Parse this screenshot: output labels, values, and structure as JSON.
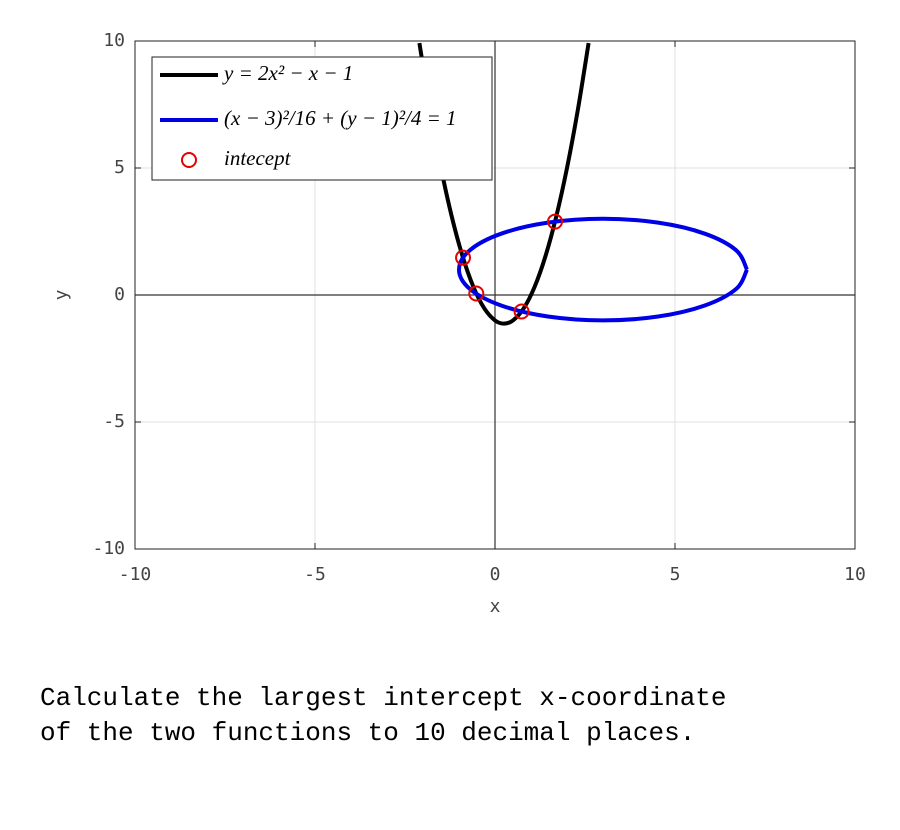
{
  "chart_data": {
    "type": "line",
    "xlabel": "x",
    "ylabel": "y",
    "xlim": [
      -10,
      10
    ],
    "ylim": [
      -10,
      10
    ],
    "xticks": [
      -10,
      -5,
      0,
      5,
      10
    ],
    "yticks": [
      -10,
      -5,
      0,
      5,
      10
    ],
    "grid": true,
    "legend": "upper left",
    "series": [
      {
        "name": "y = 2x² − x − 1",
        "color": "#000000",
        "type": "line",
        "x": [
          -2.1,
          -1.8,
          -1.5,
          -1.2,
          -0.9,
          -0.6,
          -0.3,
          0,
          0.25,
          0.5,
          0.8,
          1.1,
          1.4,
          1.7,
          2.0,
          2.3,
          2.6
        ],
        "y": [
          9.92,
          7.28,
          5,
          3.08,
          1.52,
          0.32,
          -0.52,
          -1,
          -1.125,
          -1,
          -0.52,
          0.32,
          1.52,
          3.08,
          5,
          7.28,
          9.92
        ]
      },
      {
        "name": "(x − 3)²/16 + (y − 1)²/4 = 1",
        "color": "#0000e6",
        "type": "line",
        "x": [
          7,
          6.696,
          5.828,
          4.531,
          3,
          1.469,
          0.172,
          -0.696,
          -1,
          -0.696,
          0.172,
          1.469,
          3,
          4.531,
          5.828,
          6.696,
          7
        ],
        "y": [
          1,
          1.765,
          2.414,
          2.848,
          3,
          2.848,
          2.414,
          1.765,
          1,
          0.235,
          -0.414,
          -0.848,
          -1,
          -0.848,
          -0.414,
          0.235,
          1
        ]
      },
      {
        "name": "intecept",
        "color": "#e60000",
        "type": "scatter",
        "x": [
          -0.888,
          -0.52,
          0.738,
          1.667
        ],
        "y": [
          1.47,
          0.06,
          -0.649,
          2.89
        ]
      }
    ]
  },
  "question": [
    "Calculate the largest intercept x-coordinate",
    "of the two functions to 10 decimal places."
  ]
}
